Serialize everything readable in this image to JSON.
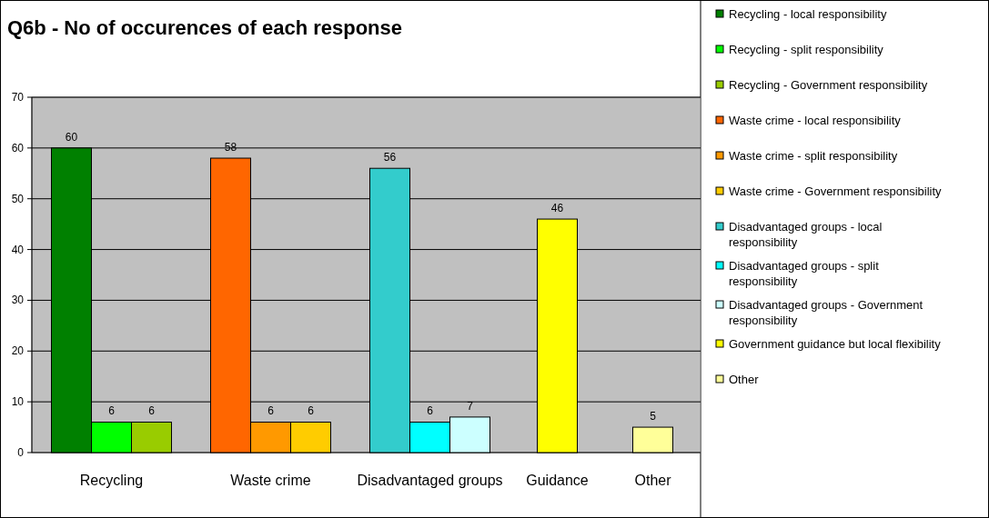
{
  "chart_data": {
    "type": "bar",
    "title": "Q6b - No of occurences of each response",
    "categories": [
      "Recycling",
      "Waste crime",
      "Disadvantaged groups",
      "Guidance",
      "Other"
    ],
    "series": [
      {
        "name": "Recycling - local responsibility",
        "color": "#008000",
        "values": [
          60,
          null,
          null,
          null,
          null
        ]
      },
      {
        "name": "Recycling - split responsibility",
        "color": "#00ff00",
        "values": [
          6,
          null,
          null,
          null,
          null
        ]
      },
      {
        "name": "Recycling - Government responsibility",
        "color": "#99cc00",
        "values": [
          6,
          null,
          null,
          null,
          null
        ]
      },
      {
        "name": "Waste crime - local responsibility",
        "color": "#ff6600",
        "values": [
          null,
          58,
          null,
          null,
          null
        ]
      },
      {
        "name": "Waste crime - split responsibility",
        "color": "#ff9900",
        "values": [
          null,
          6,
          null,
          null,
          null
        ]
      },
      {
        "name": "Waste crime - Government responsibility",
        "color": "#ffcc00",
        "values": [
          null,
          6,
          null,
          null,
          null
        ]
      },
      {
        "name": "Disadvantaged groups - local responsibility",
        "color": "#33cccc",
        "values": [
          null,
          null,
          56,
          null,
          null
        ]
      },
      {
        "name": "Disadvantaged groups - split responsibility",
        "color": "#00ffff",
        "values": [
          null,
          null,
          6,
          null,
          null
        ]
      },
      {
        "name": "Disadvantaged groups - Government responsibility",
        "color": "#ccffff",
        "values": [
          null,
          null,
          7,
          null,
          null
        ]
      },
      {
        "name": "Government guidance but local flexibility",
        "color": "#ffff00",
        "values": [
          null,
          null,
          null,
          46,
          null
        ]
      },
      {
        "name": "Other",
        "color": "#ffff99",
        "values": [
          null,
          null,
          null,
          null,
          5
        ]
      }
    ],
    "ylim": [
      0,
      70
    ],
    "yticks": [
      0,
      10,
      20,
      30,
      40,
      50,
      60,
      70
    ],
    "grid": "y",
    "data_labels": true,
    "legend": "right"
  }
}
